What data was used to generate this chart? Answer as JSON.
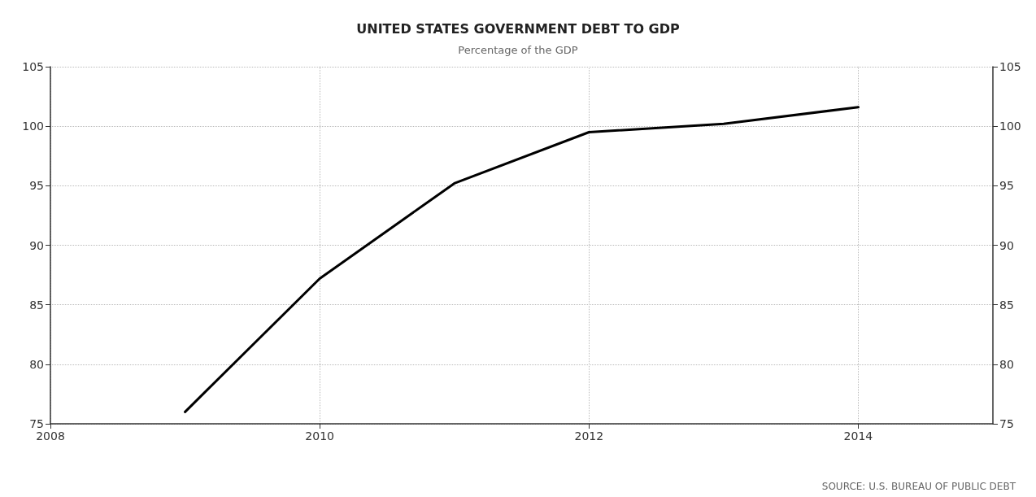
{
  "chart_data": {
    "type": "line",
    "title": "UNITED STATES GOVERNMENT DEBT TO GDP",
    "subtitle": "Percentage of the GDP",
    "x": [
      2009,
      2010,
      2011,
      2012,
      2013,
      2014
    ],
    "series": [
      {
        "color": "#000000",
        "values": [
          76.0,
          87.2,
          95.2,
          99.5,
          100.2,
          101.6
        ]
      }
    ],
    "xlim": [
      2008,
      2015
    ],
    "xticks": [
      2008,
      2010,
      2012,
      2014
    ],
    "ylim": [
      75,
      105
    ],
    "yticks": [
      75,
      80,
      85,
      90,
      95,
      100,
      105
    ],
    "y2lim": [
      75,
      105
    ],
    "y2ticks": [
      75,
      80,
      85,
      90,
      95,
      100,
      105
    ],
    "grid": true,
    "marker": "none",
    "line_style": "solid",
    "annotations": [
      "SOURCE: U.S. BUREAU OF PUBLIC DEBT"
    ]
  }
}
